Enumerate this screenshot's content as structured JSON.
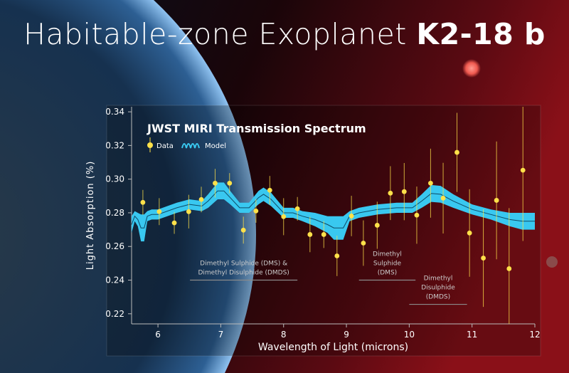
{
  "header": {
    "title_regular": "Habitable-zone Exoplanet",
    "title_bold": "K2-18 b"
  },
  "colors": {
    "data": "#ffe14a",
    "model": "#39c8f0",
    "model_line": "#0d4a66",
    "background_left": "#05101e",
    "background_right": "#7a0c14"
  },
  "chart_data": {
    "type": "scatter",
    "title": "JWST MIRI Transmission Spectrum",
    "xlabel": "Wavelength of Light (microns)",
    "ylabel": "Light Absorption (%)",
    "xlim": [
      5.58,
      12
    ],
    "ylim": [
      0.214,
      0.343
    ],
    "xticks": [
      6,
      7,
      8,
      9,
      10,
      11,
      12
    ],
    "xtick_labels": [
      "6",
      "7",
      "8",
      "9",
      "10",
      "11",
      "12"
    ],
    "yticks": [
      0.22,
      0.24,
      0.26,
      0.28,
      0.3,
      0.32,
      0.34
    ],
    "ytick_labels": [
      "0.22",
      "0.24",
      "0.26",
      "0.28",
      "0.30",
      "0.32",
      "0.34"
    ],
    "legend": {
      "placement": "top-left",
      "entries": [
        "Data",
        "Model"
      ]
    },
    "grid": false,
    "series": [
      {
        "name": "Data",
        "x": [
          5.76,
          6.02,
          6.26,
          6.49,
          6.69,
          6.91,
          7.14,
          7.36,
          7.56,
          7.78,
          8.0,
          8.22,
          8.42,
          8.64,
          8.85,
          9.08,
          9.27,
          9.49,
          9.7,
          9.92,
          10.12,
          10.34,
          10.54,
          10.76,
          10.96,
          11.18,
          11.39,
          11.59,
          11.81
        ],
        "y": [
          0.2862,
          0.2807,
          0.274,
          0.2807,
          0.2879,
          0.2976,
          0.2976,
          0.2697,
          0.2811,
          0.2934,
          0.2777,
          0.2824,
          0.2671,
          0.2671,
          0.2544,
          0.2781,
          0.262,
          0.2726,
          0.2917,
          0.2926,
          0.2786,
          0.2976,
          0.2887,
          0.3159,
          0.268,
          0.2531,
          0.2874,
          0.2468,
          0.3053
        ],
        "yerr": [
          0.0074,
          0.008,
          0.0065,
          0.01,
          0.0076,
          0.0085,
          0.006,
          0.008,
          0.007,
          0.0085,
          0.011,
          0.007,
          0.0105,
          0.008,
          0.012,
          0.012,
          0.0135,
          0.014,
          0.016,
          0.017,
          0.017,
          0.0205,
          0.021,
          0.0235,
          0.026,
          0.029,
          0.035,
          0.036,
          0.042
        ]
      },
      {
        "name": "Model",
        "x": [
          5.58,
          5.63,
          5.68,
          5.73,
          5.78,
          5.83,
          5.9,
          6.0,
          6.15,
          6.3,
          6.5,
          6.7,
          6.8,
          6.95,
          7.05,
          7.15,
          7.3,
          7.45,
          7.6,
          7.68,
          7.8,
          8.0,
          8.15,
          8.3,
          8.5,
          8.7,
          8.8,
          8.95,
          9.05,
          9.2,
          9.5,
          9.8,
          10.05,
          10.2,
          10.35,
          10.5,
          10.7,
          11.0,
          11.3,
          11.6,
          11.8,
          12.0
        ],
        "y": [
          0.273,
          0.278,
          0.276,
          0.271,
          0.271,
          0.278,
          0.279,
          0.279,
          0.281,
          0.283,
          0.285,
          0.284,
          0.287,
          0.293,
          0.293,
          0.289,
          0.283,
          0.283,
          0.289,
          0.291,
          0.288,
          0.28,
          0.28,
          0.278,
          0.276,
          0.273,
          0.271,
          0.271,
          0.278,
          0.28,
          0.282,
          0.283,
          0.283,
          0.287,
          0.2915,
          0.291,
          0.287,
          0.282,
          0.279,
          0.276,
          0.275,
          0.275
        ],
        "band_halfwidth": [
          0.005,
          0.003,
          0.004,
          0.008,
          0.008,
          0.003,
          0.003,
          0.003,
          0.003,
          0.003,
          0.003,
          0.003,
          0.004,
          0.005,
          0.005,
          0.004,
          0.003,
          0.003,
          0.004,
          0.004,
          0.004,
          0.003,
          0.003,
          0.003,
          0.004,
          0.005,
          0.007,
          0.007,
          0.003,
          0.003,
          0.003,
          0.003,
          0.003,
          0.004,
          0.005,
          0.005,
          0.004,
          0.003,
          0.003,
          0.004,
          0.005,
          0.005
        ]
      }
    ],
    "annotations": [
      {
        "lines": [
          "Dimethyl Sulphide (DMS) &",
          "Dimethyl Disulphide (DMDS)"
        ],
        "x_range": [
          6.51,
          8.22
        ],
        "y": 0.24
      },
      {
        "lines": [
          "Dimethyl",
          "Sulphide",
          "(DMS)"
        ],
        "x_range": [
          9.2,
          10.1
        ],
        "y": 0.24
      },
      {
        "lines": [
          "Dimethyl",
          "Disulphide",
          "(DMDS)"
        ],
        "x_range": [
          10.0,
          10.92
        ],
        "y": 0.2256
      }
    ]
  }
}
